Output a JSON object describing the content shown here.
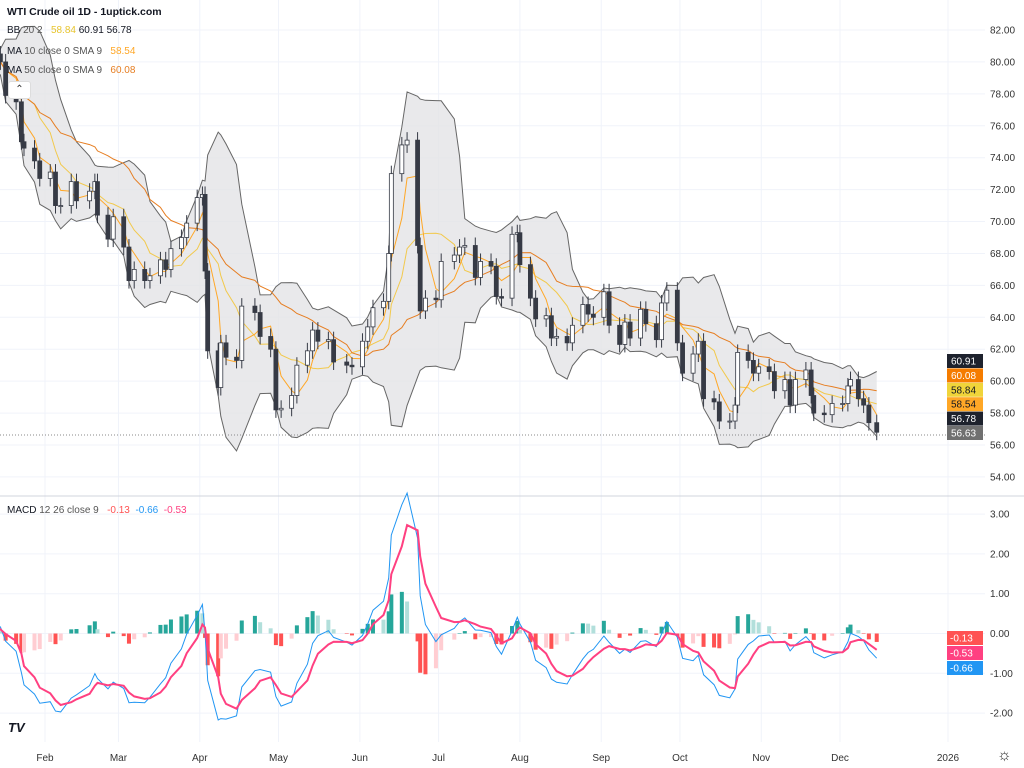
{
  "header": {
    "title": "WTI Crude oil  1D - 1uptick.com",
    "bb": {
      "label": "BB",
      "params": "20 2",
      "basis": "58.84",
      "upper": "60.91",
      "lower": "56.78"
    },
    "ma10": {
      "label": "MA",
      "params": "10 close 0 SMA 9",
      "value": "58.54"
    },
    "ma50": {
      "label": "MA",
      "params": "50 close 0 SMA 9",
      "value": "60.08"
    },
    "collapse_icon": "chevron-up-icon"
  },
  "macd_legend": {
    "label": "MACD",
    "params": "12 26 close 9",
    "hist": "-0.13",
    "macd": "-0.66",
    "signal": "-0.53"
  },
  "chart_data": [
    {
      "type": "candlestick",
      "title": "WTI Crude oil 1D",
      "ylim": [
        54,
        82
      ],
      "y_ticks": [
        "82.00",
        "80.00",
        "78.00",
        "76.00",
        "74.00",
        "72.00",
        "70.00",
        "68.00",
        "66.00",
        "64.00",
        "62.00",
        "60.00",
        "58.00",
        "56.00",
        "54.00"
      ],
      "x_ticks": [
        {
          "label": "Feb",
          "date": "2025-02-01"
        },
        {
          "label": "Mar",
          "date": "2025-03-01"
        },
        {
          "label": "Apr",
          "date": "2025-04-01"
        },
        {
          "label": "May",
          "date": "2025-05-01"
        },
        {
          "label": "Jun",
          "date": "2025-06-01"
        },
        {
          "label": "Jul",
          "date": "2025-07-01"
        },
        {
          "label": "Aug",
          "date": "2025-08-01"
        },
        {
          "label": "Sep",
          "date": "2025-09-01"
        },
        {
          "label": "Oct",
          "date": "2025-10-01"
        },
        {
          "label": "Nov",
          "date": "2025-11-01"
        },
        {
          "label": "Dec",
          "date": "2025-12-01"
        },
        {
          "label": "2026",
          "date": "2026-01-01"
        }
      ],
      "grid": true,
      "colors": {
        "up_fill": "#ffffff",
        "down_fill": "#363a45",
        "outline": "#363a45",
        "bb_band": "#e3e4e6",
        "bb_line": "#666666",
        "bb_basis": "#f2c94c",
        "ma10": "#ffa726",
        "ma50": "#e67e22"
      },
      "price_labels": [
        {
          "value": "60.91",
          "color": "#1e222d",
          "text": "#ffffff"
        },
        {
          "value": "60.08",
          "color": "#f57c00",
          "text": "#ffffff"
        },
        {
          "value": "58.84",
          "color": "#f0d43a",
          "text": "#131722"
        },
        {
          "value": "58.54",
          "color": "#ffa726",
          "text": "#131722"
        },
        {
          "value": "56.78",
          "color": "#1e222d",
          "text": "#ffffff"
        },
        {
          "value": "56.63",
          "color": "#707070",
          "text": "#ffffff"
        }
      ],
      "last_price": 56.63,
      "closes": [
        [
          "2025-01-13",
          79.5
        ],
        [
          "2025-01-14",
          80.5
        ],
        [
          "2025-01-15",
          80.0
        ],
        [
          "2025-01-17",
          77.9
        ],
        [
          "2025-01-21",
          77.5
        ],
        [
          "2025-01-23",
          75.0
        ],
        [
          "2025-01-24",
          74.6
        ],
        [
          "2025-01-28",
          73.8
        ],
        [
          "2025-01-30",
          72.7
        ],
        [
          "2025-02-03",
          73.1
        ],
        [
          "2025-02-05",
          71.0
        ],
        [
          "2025-02-07",
          71.0
        ],
        [
          "2025-02-11",
          72.5
        ],
        [
          "2025-02-13",
          71.3
        ],
        [
          "2025-02-18",
          71.9
        ],
        [
          "2025-02-20",
          72.5
        ],
        [
          "2025-02-21",
          70.4
        ],
        [
          "2025-02-25",
          68.9
        ],
        [
          "2025-02-27",
          70.3
        ],
        [
          "2025-03-03",
          68.4
        ],
        [
          "2025-03-05",
          66.3
        ],
        [
          "2025-03-07",
          67.0
        ],
        [
          "2025-03-11",
          66.3
        ],
        [
          "2025-03-13",
          66.6
        ],
        [
          "2025-03-17",
          67.6
        ],
        [
          "2025-03-19",
          67.0
        ],
        [
          "2025-03-21",
          68.3
        ],
        [
          "2025-03-25",
          69.0
        ],
        [
          "2025-03-27",
          69.9
        ],
        [
          "2025-03-31",
          71.5
        ],
        [
          "2025-04-02",
          71.7
        ],
        [
          "2025-04-03",
          66.9
        ],
        [
          "2025-04-04",
          61.9
        ],
        [
          "2025-04-08",
          59.6
        ],
        [
          "2025-04-09",
          62.4
        ],
        [
          "2025-04-11",
          61.5
        ],
        [
          "2025-04-15",
          61.3
        ],
        [
          "2025-04-17",
          64.7
        ],
        [
          "2025-04-22",
          64.3
        ],
        [
          "2025-04-24",
          62.8
        ],
        [
          "2025-04-28",
          62.0
        ],
        [
          "2025-04-30",
          58.2
        ],
        [
          "2025-05-02",
          58.3
        ],
        [
          "2025-05-06",
          59.1
        ],
        [
          "2025-05-08",
          61.0
        ],
        [
          "2025-05-12",
          61.9
        ],
        [
          "2025-05-14",
          63.2
        ],
        [
          "2025-05-16",
          62.5
        ],
        [
          "2025-05-20",
          62.6
        ],
        [
          "2025-05-22",
          61.2
        ],
        [
          "2025-05-27",
          61.0
        ],
        [
          "2025-05-29",
          60.9
        ],
        [
          "2025-06-02",
          62.5
        ],
        [
          "2025-06-04",
          63.4
        ],
        [
          "2025-06-06",
          64.6
        ],
        [
          "2025-06-10",
          65.0
        ],
        [
          "2025-06-12",
          68.0
        ],
        [
          "2025-06-13",
          73.0
        ],
        [
          "2025-06-17",
          74.8
        ],
        [
          "2025-06-19",
          75.1
        ],
        [
          "2025-06-23",
          68.5
        ],
        [
          "2025-06-24",
          64.4
        ],
        [
          "2025-06-26",
          65.2
        ],
        [
          "2025-06-30",
          65.1
        ],
        [
          "2025-07-02",
          67.5
        ],
        [
          "2025-07-07",
          67.9
        ],
        [
          "2025-07-09",
          68.4
        ],
        [
          "2025-07-11",
          68.5
        ],
        [
          "2025-07-15",
          66.5
        ],
        [
          "2025-07-17",
          67.5
        ],
        [
          "2025-07-21",
          67.2
        ],
        [
          "2025-07-23",
          65.3
        ],
        [
          "2025-07-25",
          65.2
        ],
        [
          "2025-07-29",
          69.2
        ],
        [
          "2025-07-31",
          69.3
        ],
        [
          "2025-08-01",
          67.3
        ],
        [
          "2025-08-05",
          65.2
        ],
        [
          "2025-08-07",
          63.9
        ],
        [
          "2025-08-11",
          64.1
        ],
        [
          "2025-08-13",
          62.7
        ],
        [
          "2025-08-15",
          62.8
        ],
        [
          "2025-08-19",
          62.4
        ],
        [
          "2025-08-21",
          63.5
        ],
        [
          "2025-08-25",
          64.8
        ],
        [
          "2025-08-27",
          64.2
        ],
        [
          "2025-08-29",
          64.0
        ],
        [
          "2025-09-02",
          65.6
        ],
        [
          "2025-09-04",
          63.5
        ],
        [
          "2025-09-08",
          62.3
        ],
        [
          "2025-09-10",
          63.7
        ],
        [
          "2025-09-12",
          62.7
        ],
        [
          "2025-09-16",
          64.5
        ],
        [
          "2025-09-18",
          63.6
        ],
        [
          "2025-09-22",
          62.6
        ],
        [
          "2025-09-24",
          64.9
        ],
        [
          "2025-09-26",
          65.7
        ],
        [
          "2025-09-30",
          62.4
        ],
        [
          "2025-10-02",
          60.5
        ],
        [
          "2025-10-06",
          61.7
        ],
        [
          "2025-10-08",
          62.5
        ],
        [
          "2025-10-10",
          58.9
        ],
        [
          "2025-10-14",
          58.7
        ],
        [
          "2025-10-16",
          57.5
        ],
        [
          "2025-10-20",
          57.5
        ],
        [
          "2025-10-22",
          58.5
        ],
        [
          "2025-10-23",
          61.8
        ],
        [
          "2025-10-27",
          61.3
        ],
        [
          "2025-10-29",
          60.5
        ],
        [
          "2025-10-31",
          60.9
        ],
        [
          "2025-11-04",
          60.6
        ],
        [
          "2025-11-06",
          59.4
        ],
        [
          "2025-11-10",
          60.1
        ],
        [
          "2025-11-12",
          58.5
        ],
        [
          "2025-11-14",
          60.1
        ],
        [
          "2025-11-18",
          60.7
        ],
        [
          "2025-11-20",
          59.1
        ],
        [
          "2025-11-21",
          58.0
        ],
        [
          "2025-11-25",
          57.9
        ],
        [
          "2025-11-28",
          58.6
        ],
        [
          "2025-12-02",
          58.6
        ],
        [
          "2025-12-04",
          59.7
        ],
        [
          "2025-12-05",
          60.1
        ],
        [
          "2025-12-08",
          58.9
        ],
        [
          "2025-12-10",
          58.5
        ],
        [
          "2025-12-12",
          57.4
        ],
        [
          "2025-12-15",
          56.8
        ]
      ]
    },
    {
      "type": "macd",
      "ylim": [
        -2.5,
        3.2
      ],
      "y_ticks": [
        "3.00",
        "2.00",
        "1.00",
        "0.00",
        "-1.00",
        "-2.00"
      ],
      "colors": {
        "macd": "#2196f3",
        "signal": "#ff4081",
        "hist_up_strong": "#26a69a",
        "hist_up_weak": "#b2dfdb",
        "hist_down_strong": "#ff5252",
        "hist_down_weak": "#ffcdd2"
      },
      "value_labels": [
        {
          "value": "-0.13",
          "color": "#ff5252"
        },
        {
          "value": "-0.53",
          "color": "#ff4081"
        },
        {
          "value": "-0.66",
          "color": "#2196f3"
        }
      ]
    }
  ],
  "footer": {
    "logo": "TV",
    "settings_icon": "gear-icon"
  }
}
